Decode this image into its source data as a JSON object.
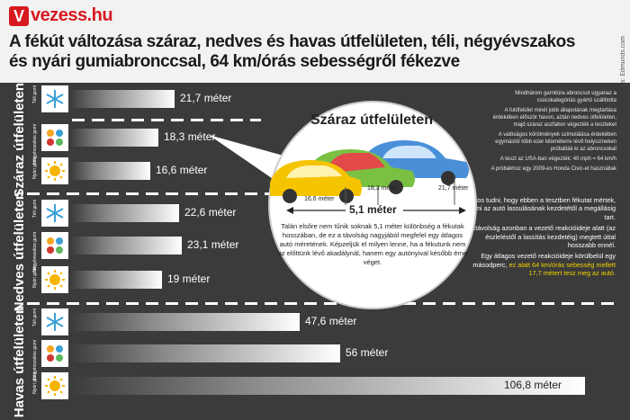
{
  "header": {
    "logo_letter": "V",
    "logo_text": "vezess.hu",
    "title": "A fékút változása száraz, nedves és havas útfelületen, téli, négyévszakos és nyári gumiabronccsal, 64 km/órás sebességről fékezve",
    "source": "Forrás: Edmunds.com"
  },
  "sections": [
    {
      "label": "Száraz útfelületen"
    },
    {
      "label": "Nedves útfelületen"
    },
    {
      "label": "Havas útfelületen"
    }
  ],
  "tyre_types": [
    "Téli gumi",
    "Négyévszakos gumi",
    "Nyári gumi"
  ],
  "icons": [
    "snowflake-icon",
    "four-season-icon",
    "sun-icon"
  ],
  "colors": {
    "panel": "#3b3b3b",
    "accent": "#d71920",
    "highlight": "#f2d100"
  },
  "info_top": [
    "Mindhárom garnitúra abroncsot ugyanaz a csúcskategóriás gyártó szállította",
    "A futófelület minél jobb állapotának megtartása érdekében először havon, aztán nedves útfelületen, majd száraz aszfalton végezték a teszteket",
    "A valóságos körülmények szimulálása érdekében egymástól több ezer kilométerre lévő helyszíneken próbálták ki az abroncsokat",
    "A teszt az USA-ban végezték: 40 mph = 64 km/h",
    "A próbákhoz egy 2009-es Honda Civic-et használtak"
  ],
  "info_bottom": {
    "p1": "Fontos tudni, hogy ebben a tesztben fékutat mértek, ami az autó lassulásának kezdetétől a megállásig tart.",
    "p2": "A féktávolság azonban a vezető reakcióideje alatt (az észleléstől a lassítás kezdetéig) megtett úttal hosszabb ennél.",
    "p3": "Egy átlagos vezető reakcióideje körülbelül egy másodperc,",
    "p4": "ez alatt 64 km/órás sebesség mellett 17,7 métert tesz meg az autó."
  },
  "callout": {
    "title": "Száraz útfelületen",
    "difference": "5,1 méter",
    "car_labels": [
      "16,6 méter",
      "18,3 méter",
      "21,7 méter"
    ],
    "text": "Talán elsőre nem tűnik soknak 5,1 méter különbség a fékutak hosszában, de ez a távolság nagyjából megfelel egy átlagos autó méretének. Képzeljük el milyen lenne, ha a fékutunk nem az előttünk lévő akadálynál, hanem egy autónyival később érne véget."
  },
  "chart_data": {
    "type": "bar",
    "title": "A fékút változása száraz, nedves és havas útfelületen, téli, négyévszakos és nyári gumiabronccsal, 64 km/órás sebességről fékezve",
    "unit": "méter",
    "groups": [
      "Száraz útfelületen",
      "Nedves útfelületen",
      "Havas útfelületen"
    ],
    "categories": [
      "Téli gumi",
      "Négyévszakos gumi",
      "Nyári gumi"
    ],
    "series": [
      {
        "name": "Száraz útfelületen",
        "values": [
          21.7,
          18.3,
          16.6
        ],
        "labels": [
          "21,7 méter",
          "18,3 méter",
          "16,6 méter"
        ]
      },
      {
        "name": "Nedves útfelületen",
        "values": [
          22.6,
          23.1,
          19.0
        ],
        "labels": [
          "22,6 méter",
          "23,1 méter",
          "19 méter"
        ]
      },
      {
        "name": "Havas útfelületen",
        "values": [
          47.6,
          56.0,
          106.8
        ],
        "labels": [
          "47,6 méter",
          "56 méter",
          "106,8 méter"
        ]
      }
    ]
  }
}
